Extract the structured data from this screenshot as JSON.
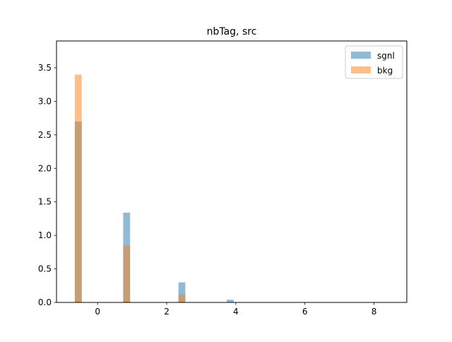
{
  "chart_data": {
    "type": "bar",
    "title": "nbTag, src",
    "xlabel": "",
    "ylabel": "",
    "xlim": [
      -1.19,
      8.95
    ],
    "ylim": [
      0,
      3.9
    ],
    "xticks": [
      0,
      2,
      4,
      6,
      8
    ],
    "yticks": [
      0.0,
      0.5,
      1.0,
      1.5,
      2.0,
      2.5,
      3.0,
      3.5
    ],
    "xtick_labels": [
      "0",
      "2",
      "4",
      "6",
      "8"
    ],
    "ytick_labels": [
      "0.0",
      "0.5",
      "1.0",
      "1.5",
      "2.0",
      "2.5",
      "3.0",
      "3.5"
    ],
    "bin_width": 0.2,
    "legend_position": "top-right",
    "alpha": 0.5,
    "series": [
      {
        "name": "sgnl",
        "color": "#1f77b4",
        "bars": [
          {
            "x": -0.66,
            "value": 2.7
          },
          {
            "x": 0.74,
            "value": 1.34
          },
          {
            "x": 2.34,
            "value": 0.3
          },
          {
            "x": 3.74,
            "value": 0.04
          }
        ]
      },
      {
        "name": "bkg",
        "color": "#ff7f0e",
        "bars": [
          {
            "x": -0.66,
            "value": 3.4
          },
          {
            "x": 0.74,
            "value": 0.85
          },
          {
            "x": 2.34,
            "value": 0.12
          }
        ]
      }
    ]
  }
}
